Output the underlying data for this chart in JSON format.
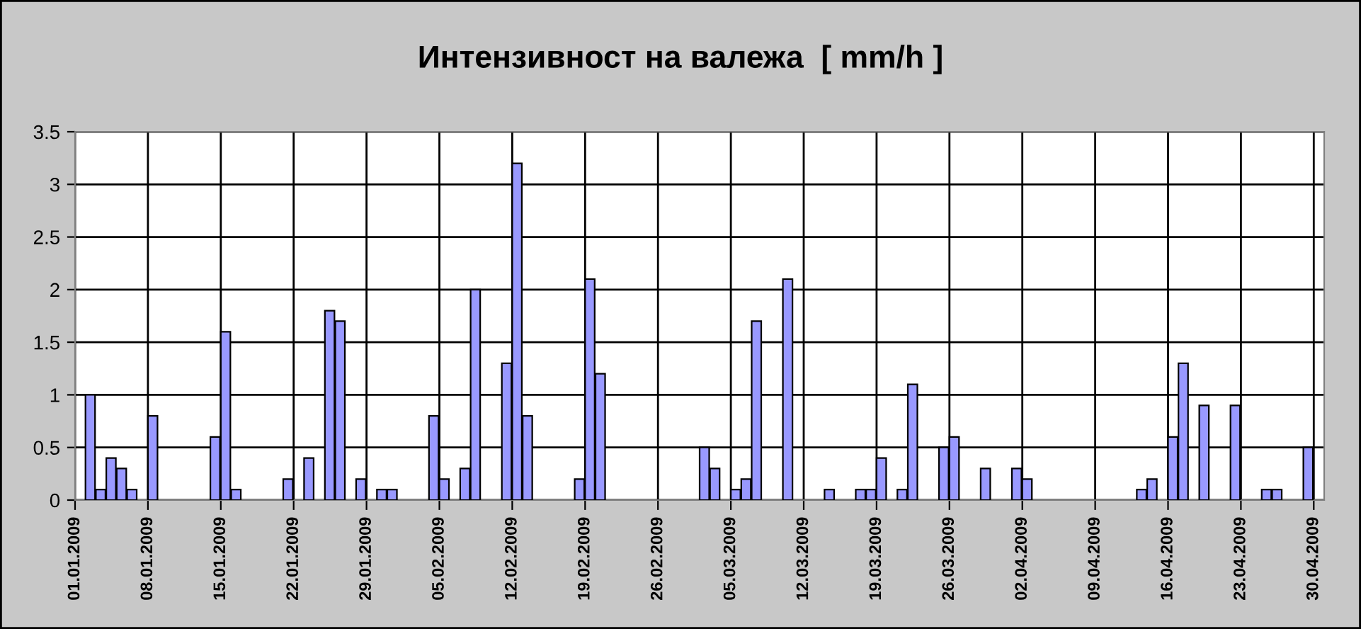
{
  "chart_data": {
    "type": "bar",
    "title": "Интензивност на валежа  [ mm/h ]",
    "categories": [
      "01.01.2009",
      null,
      null,
      null,
      null,
      null,
      null,
      "08.01.2009",
      null,
      null,
      null,
      null,
      null,
      null,
      "15.01.2009",
      null,
      null,
      null,
      null,
      null,
      null,
      "22.01.2009",
      null,
      null,
      null,
      null,
      null,
      null,
      "29.01.2009",
      null,
      null,
      null,
      null,
      null,
      null,
      "05.02.2009",
      null,
      null,
      null,
      null,
      null,
      null,
      "12.02.2009",
      null,
      null,
      null,
      null,
      null,
      null,
      "19.02.2009",
      null,
      null,
      null,
      null,
      null,
      null,
      "26.02.2009",
      null,
      null,
      null,
      null,
      null,
      null,
      "05.03.2009",
      null,
      null,
      null,
      null,
      null,
      null,
      "12.03.2009",
      null,
      null,
      null,
      null,
      null,
      null,
      "19.03.2009",
      null,
      null,
      null,
      null,
      null,
      null,
      "26.03.2009",
      null,
      null,
      null,
      null,
      null,
      null,
      "02.04.2009",
      null,
      null,
      null,
      null,
      null,
      null,
      "09.04.2009",
      null,
      null,
      null,
      null,
      null,
      null,
      "16.04.2009",
      null,
      null,
      null,
      null,
      null,
      null,
      "23.04.2009",
      null,
      null,
      null,
      null,
      null,
      null,
      "30.04.2009"
    ],
    "values": [
      null,
      1,
      0.1,
      0.4,
      0.3,
      0.1,
      null,
      0.8,
      null,
      null,
      null,
      null,
      null,
      0.6,
      1.6,
      0.1,
      null,
      null,
      null,
      null,
      0.2,
      null,
      0.4,
      null,
      1.8,
      1.7,
      null,
      0.2,
      null,
      0.1,
      0.1,
      null,
      null,
      null,
      0.8,
      0.2,
      null,
      0.3,
      2,
      null,
      null,
      1.3,
      3.2,
      0.8,
      null,
      null,
      null,
      null,
      0.2,
      2.1,
      1.2,
      null,
      null,
      null,
      null,
      null,
      null,
      null,
      null,
      null,
      0.5,
      0.3,
      null,
      0.1,
      0.2,
      1.7,
      null,
      null,
      2.1,
      null,
      null,
      null,
      0.1,
      null,
      null,
      0.1,
      0.1,
      0.4,
      null,
      0.1,
      1.1,
      null,
      null,
      0.5,
      0.6,
      null,
      null,
      0.3,
      null,
      null,
      0.3,
      0.2,
      null,
      null,
      null,
      null,
      null,
      null,
      null,
      null,
      null,
      null,
      0.1,
      0.2,
      null,
      0.6,
      1.3,
      null,
      0.9,
      null,
      null,
      0.9,
      null,
      null,
      0.1,
      0.1,
      null,
      null,
      0.5,
      null
    ],
    "color": "#9999ff",
    "ylim": [
      0,
      3.5
    ],
    "yticks": [
      0,
      0.5,
      1,
      1.5,
      2,
      2.5,
      3,
      3.5
    ],
    "grid": true,
    "legend": false
  }
}
